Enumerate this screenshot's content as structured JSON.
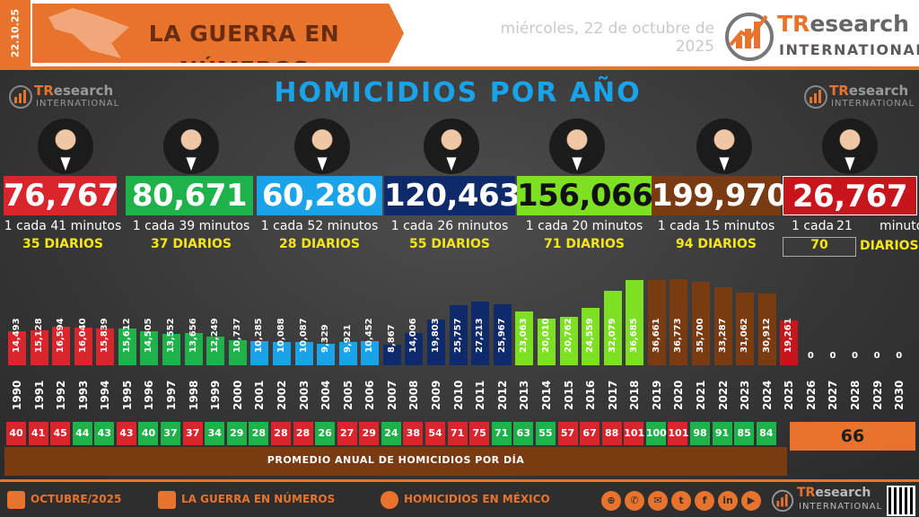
{
  "header": {
    "date_vertical": "22.10.25",
    "title": "LA GUERRA EN NÚMEROS",
    "date_text": "miércoles, 22 de octubre de 2025",
    "brand_name_a": "TR",
    "brand_name_b": "esearch",
    "brand_sub": "INTERNATIONAL"
  },
  "main": {
    "title": "HOMICIDIOS POR AÑO",
    "brand_small_a": "TR",
    "brand_small_b": "esearch",
    "brand_small_sub": "INTERNATIONAL"
  },
  "presidents": [
    {
      "total": "76,767",
      "color": "#d8262c",
      "rate_prefix": "1 cada",
      "rate_num": "41",
      "rate_unit": "minutos",
      "daily": "35 DIARIOS"
    },
    {
      "total": "80,671",
      "color": "#1fb24a",
      "rate_prefix": "1 cada",
      "rate_num": "39",
      "rate_unit": "minutos",
      "daily": "37 DIARIOS"
    },
    {
      "total": "60,280",
      "color": "#1aa3e8",
      "rate_prefix": "1 cada",
      "rate_num": "52",
      "rate_unit": "minutos",
      "daily": "28 DIARIOS"
    },
    {
      "total": "120,463",
      "color": "#0e2a6b",
      "rate_prefix": "1 cada",
      "rate_num": "26",
      "rate_unit": "minutos",
      "daily": "55 DIARIOS"
    },
    {
      "total": "156,066",
      "color": "#7ee022",
      "rate_prefix": "1 cada",
      "rate_num": "20",
      "rate_unit": "minutos",
      "daily": "71 DIARIOS"
    },
    {
      "total": "199,970",
      "color": "#7a3a12",
      "rate_prefix": "1 cada",
      "rate_num": "15",
      "rate_unit": "minutos",
      "daily": "94 DIARIOS"
    },
    {
      "total": "26,767",
      "color": "#c8151b",
      "rate_prefix": "1 cada",
      "rate_num": "21",
      "rate_unit": "minutos",
      "daily": "DIARIOS",
      "daily_box": "70"
    }
  ],
  "chart_data": {
    "type": "bar",
    "title": "HOMICIDIOS POR AÑO",
    "categories": [
      "1990",
      "1991",
      "1992",
      "1993",
      "1994",
      "1995",
      "1996",
      "1997",
      "1998",
      "1999",
      "2000",
      "2001",
      "2002",
      "2003",
      "2004",
      "2005",
      "2006",
      "2007",
      "2008",
      "2009",
      "2010",
      "2011",
      "2012",
      "2013",
      "2014",
      "2015",
      "2016",
      "2017",
      "2018",
      "2019",
      "2020",
      "2021",
      "2022",
      "2023",
      "2024",
      "2025",
      "2026",
      "2027",
      "2028",
      "2029",
      "2030"
    ],
    "values": [
      14493,
      15128,
      16594,
      16040,
      15839,
      15612,
      14505,
      13552,
      13656,
      12249,
      10737,
      10285,
      10088,
      10087,
      9329,
      9921,
      10452,
      8867,
      14006,
      19803,
      25757,
      27213,
      25967,
      23063,
      20010,
      20762,
      24559,
      32079,
      36685,
      36661,
      36773,
      35700,
      33287,
      31062,
      30912,
      19261,
      0,
      0,
      0,
      0,
      0
    ],
    "value_labels": [
      "14,493",
      "15,128",
      "16,594",
      "16,040",
      "15,839",
      "15,612",
      "14,505",
      "13,552",
      "13,656",
      "12,249",
      "10,737",
      "10,285",
      "10,088",
      "10,087",
      "9,329",
      "9,921",
      "10,452",
      "8,867",
      "14,006",
      "19,803",
      "25,757",
      "27,213",
      "25,967",
      "23,063",
      "20,010",
      "20,762",
      "24,559",
      "32,079",
      "36,685",
      "36,661",
      "36,773",
      "35,700",
      "33,287",
      "31,062",
      "30,912",
      "19,261",
      "0",
      "0",
      "0",
      "0",
      "0"
    ],
    "bar_colors": [
      "#d8262c",
      "#d8262c",
      "#d8262c",
      "#d8262c",
      "#d8262c",
      "#1fb24a",
      "#1fb24a",
      "#1fb24a",
      "#1fb24a",
      "#1fb24a",
      "#1fb24a",
      "#1aa3e8",
      "#1aa3e8",
      "#1aa3e8",
      "#1aa3e8",
      "#1aa3e8",
      "#1aa3e8",
      "#0e2a6b",
      "#0e2a6b",
      "#0e2a6b",
      "#0e2a6b",
      "#0e2a6b",
      "#0e2a6b",
      "#7ee022",
      "#7ee022",
      "#7ee022",
      "#7ee022",
      "#7ee022",
      "#7ee022",
      "#7a3a12",
      "#7a3a12",
      "#7a3a12",
      "#7a3a12",
      "#7a3a12",
      "#7a3a12",
      "#c8151b",
      "#c8151b",
      "#c8151b",
      "#c8151b",
      "#c8151b",
      "#c8151b"
    ],
    "ylim": [
      0,
      40000
    ]
  },
  "daily_average": {
    "values": [
      "40",
      "41",
      "45",
      "44",
      "43",
      "43",
      "40",
      "37",
      "37",
      "34",
      "29",
      "28",
      "28",
      "28",
      "26",
      "27",
      "29",
      "24",
      "38",
      "54",
      "71",
      "75",
      "71",
      "63",
      "55",
      "57",
      "67",
      "88",
      "101",
      "100",
      "101",
      "98",
      "91",
      "85",
      "84"
    ],
    "colors": [
      "#d8262c",
      "#d8262c",
      "#d8262c",
      "#1fb24a",
      "#1fb24a",
      "#d8262c",
      "#1fb24a",
      "#1fb24a",
      "#d8262c",
      "#1fb24a",
      "#1fb24a",
      "#1fb24a",
      "#d8262c",
      "#d8262c",
      "#1fb24a",
      "#d8262c",
      "#d8262c",
      "#1fb24a",
      "#d8262c",
      "#d8262c",
      "#d8262c",
      "#d8262c",
      "#1fb24a",
      "#1fb24a",
      "#1fb24a",
      "#d8262c",
      "#d8262c",
      "#d8262c",
      "#d8262c",
      "#1fb24a",
      "#d8262c",
      "#1fb24a",
      "#1fb24a",
      "#1fb24a",
      "#1fb24a"
    ],
    "band_label": "PROMEDIO ANUAL DE HOMICIDIOS POR DÍA",
    "highlight": "66"
  },
  "footer": {
    "month": "OCTUBRE/2025",
    "series": "LA GUERRA EN NÚMEROS",
    "topic": "HOMICIDIOS EN MÉXICO",
    "socials": [
      "globe-icon",
      "whatsapp-icon",
      "mail-icon",
      "twitter-icon",
      "facebook-icon",
      "linkedin-icon",
      "youtube-icon"
    ]
  }
}
